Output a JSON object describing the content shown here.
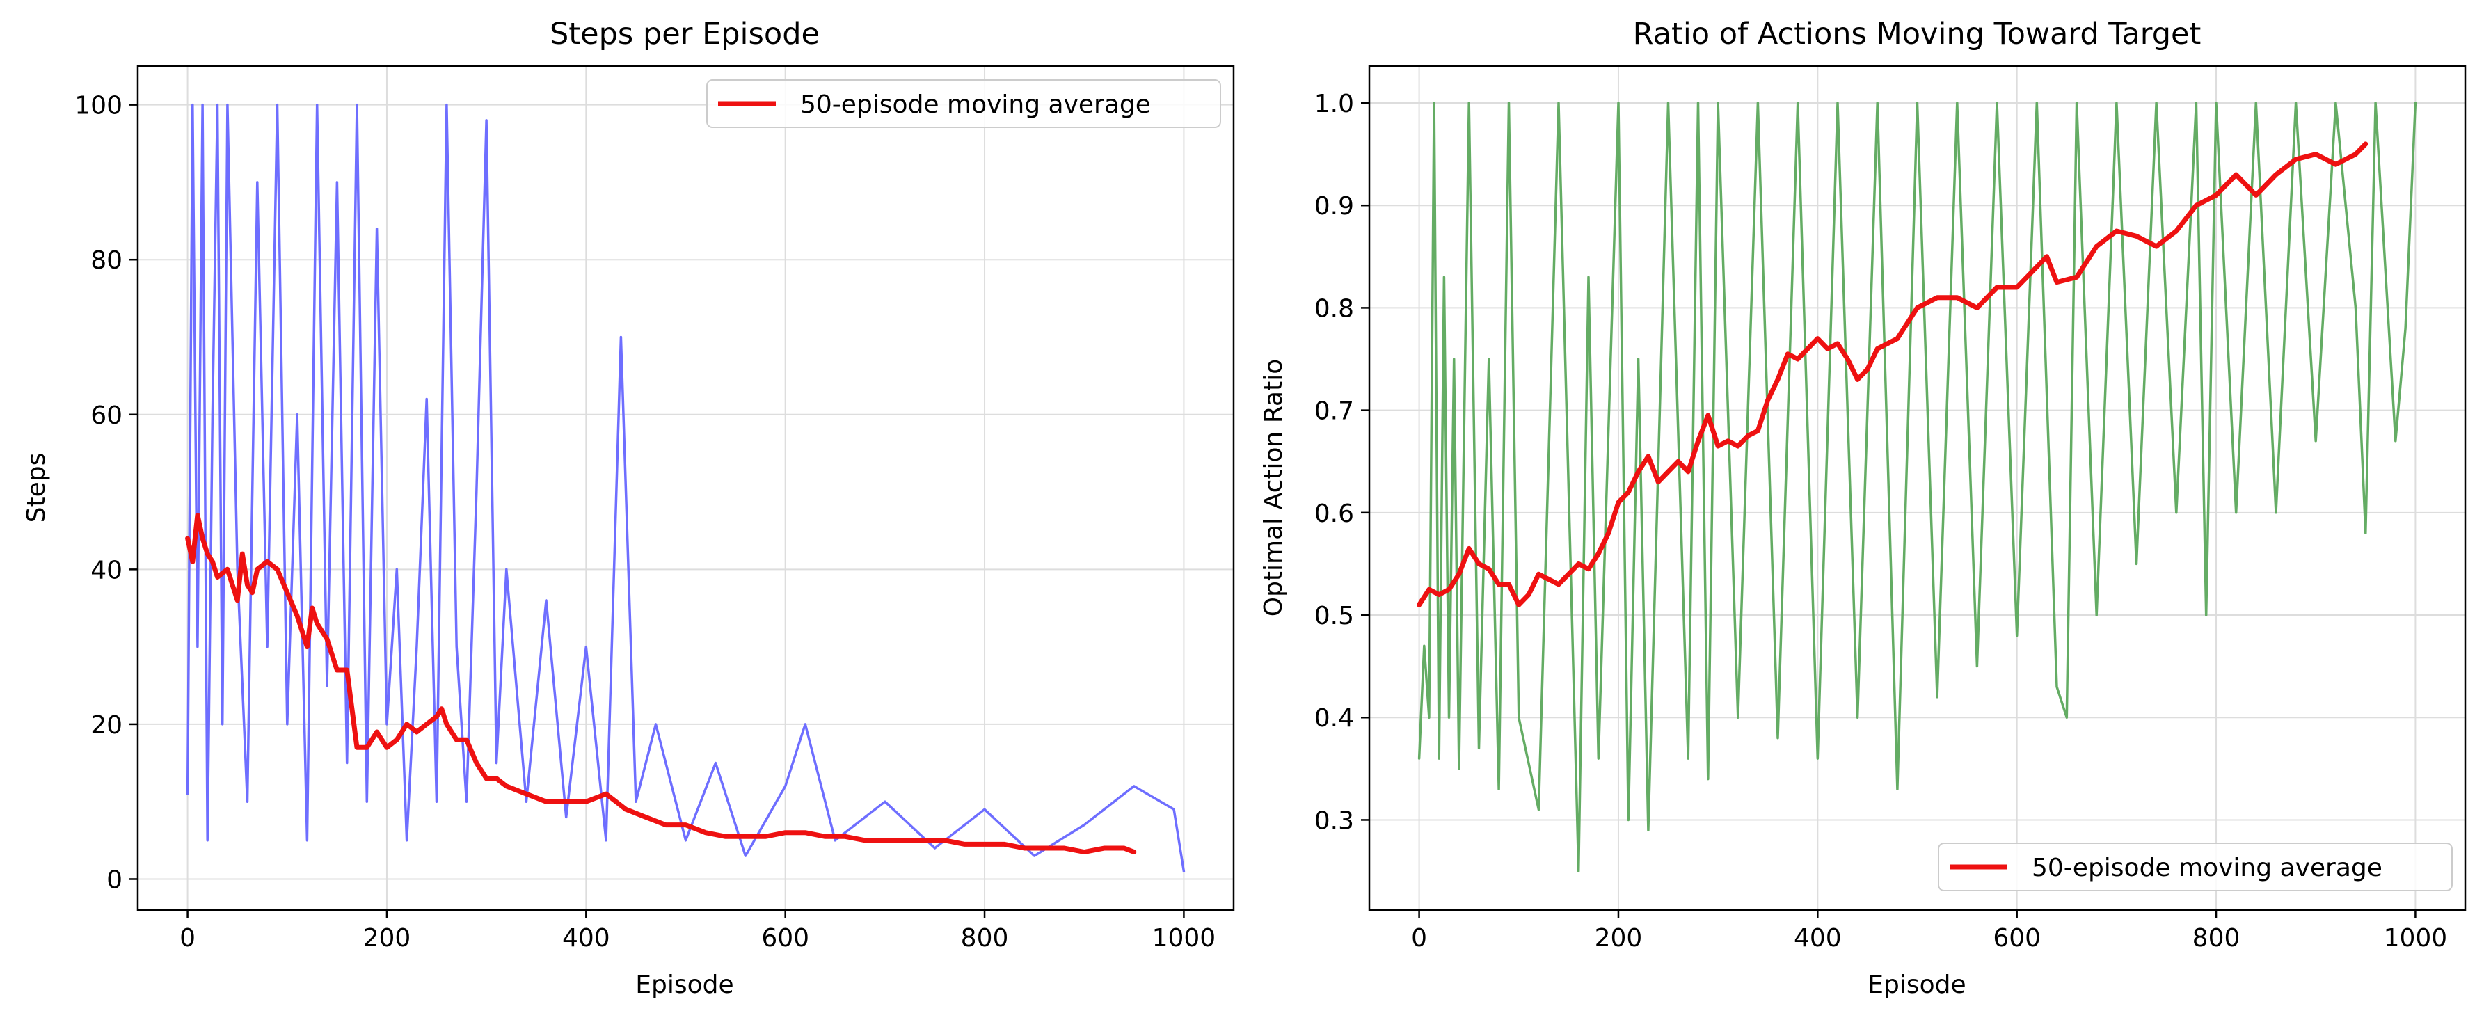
{
  "colors": {
    "steps_raw": "#6666ff",
    "ratio_raw": "#5ca85c",
    "moving_average": "#ee1111",
    "grid": "#dddddd",
    "axes": "#000000",
    "legend_border": "#cccccc"
  },
  "chart_data": [
    {
      "type": "line",
      "title": "Steps per Episode",
      "xlabel": "Episode",
      "ylabel": "Steps",
      "xlim": [
        -50,
        1050
      ],
      "ylim": [
        -4,
        105
      ],
      "xticks": [
        0,
        200,
        400,
        600,
        800,
        1000
      ],
      "yticks": [
        0,
        20,
        40,
        60,
        80,
        100
      ],
      "xtick_labels": [
        "0",
        "200",
        "400",
        "600",
        "800",
        "1000"
      ],
      "ytick_labels": [
        "0",
        "20",
        "40",
        "60",
        "80",
        "100"
      ],
      "grid": true,
      "legend_position": "upper right",
      "series": [
        {
          "name": "",
          "color": "#6666ff",
          "note_on_sampling": "per-episode raw values are only visible as a dense band; key points read from figure",
          "x": [
            0,
            5,
            10,
            15,
            20,
            25,
            30,
            35,
            40,
            50,
            60,
            70,
            80,
            90,
            100,
            110,
            120,
            130,
            140,
            150,
            160,
            170,
            180,
            190,
            200,
            210,
            220,
            230,
            240,
            250,
            260,
            270,
            280,
            290,
            300,
            310,
            320,
            340,
            360,
            380,
            400,
            420,
            435,
            450,
            470,
            500,
            530,
            560,
            600,
            620,
            650,
            700,
            750,
            800,
            850,
            900,
            950,
            990,
            1000
          ],
          "values": [
            11,
            100,
            30,
            100,
            5,
            60,
            100,
            20,
            100,
            40,
            10,
            90,
            30,
            100,
            20,
            60,
            5,
            100,
            25,
            90,
            15,
            100,
            10,
            84,
            20,
            40,
            5,
            30,
            62,
            10,
            100,
            30,
            10,
            50,
            98,
            15,
            40,
            10,
            36,
            8,
            30,
            5,
            70,
            10,
            20,
            5,
            15,
            3,
            12,
            20,
            5,
            10,
            4,
            9,
            3,
            7,
            12,
            9,
            1
          ]
        },
        {
          "name": "50-episode moving average",
          "color": "#ee1111",
          "x": [
            0,
            5,
            10,
            15,
            20,
            25,
            30,
            40,
            50,
            55,
            60,
            65,
            70,
            80,
            90,
            100,
            110,
            120,
            125,
            130,
            140,
            150,
            160,
            170,
            175,
            180,
            190,
            200,
            210,
            220,
            230,
            240,
            250,
            255,
            260,
            270,
            280,
            290,
            300,
            310,
            320,
            340,
            360,
            380,
            400,
            420,
            440,
            460,
            480,
            500,
            520,
            540,
            560,
            580,
            600,
            620,
            640,
            660,
            680,
            700,
            720,
            740,
            760,
            780,
            800,
            820,
            840,
            860,
            880,
            900,
            920,
            940,
            950
          ],
          "values": [
            44,
            41,
            47,
            44,
            42,
            41,
            39,
            40,
            36,
            42,
            38,
            37,
            40,
            41,
            40,
            37,
            34,
            30,
            35,
            33,
            31,
            27,
            27,
            17,
            17,
            17,
            19,
            17,
            18,
            20,
            19,
            20,
            21,
            22,
            20,
            18,
            18,
            15,
            13,
            13,
            12,
            11,
            10,
            10,
            10,
            11,
            9,
            8,
            7,
            7,
            6,
            5.5,
            5.5,
            5.5,
            6,
            6,
            5.5,
            5.5,
            5,
            5,
            5,
            5,
            5,
            4.5,
            4.5,
            4.5,
            4,
            4,
            4,
            3.5,
            4,
            4,
            3.5
          ]
        }
      ]
    },
    {
      "type": "line",
      "title": "Ratio of Actions Moving Toward Target",
      "xlabel": "Episode",
      "ylabel": "Optimal Action Ratio",
      "xlim": [
        -50,
        1050
      ],
      "ylim": [
        0.212,
        1.036
      ],
      "xticks": [
        0,
        200,
        400,
        600,
        800,
        1000
      ],
      "yticks": [
        0.3,
        0.4,
        0.5,
        0.6,
        0.7,
        0.8,
        0.9,
        1.0
      ],
      "xtick_labels": [
        "0",
        "200",
        "400",
        "600",
        "800",
        "1000"
      ],
      "ytick_labels": [
        "0.3",
        "0.4",
        "0.5",
        "0.6",
        "0.7",
        "0.8",
        "0.9",
        "1.0"
      ],
      "grid": true,
      "legend_position": "lower right",
      "series": [
        {
          "name": "",
          "color": "#5ca85c",
          "note_on_sampling": "per-episode raw values are only visible as a dense band; key points read from figure",
          "x": [
            0,
            5,
            10,
            15,
            20,
            25,
            30,
            35,
            40,
            50,
            60,
            70,
            80,
            90,
            100,
            120,
            140,
            160,
            170,
            180,
            200,
            210,
            220,
            230,
            250,
            270,
            280,
            290,
            300,
            320,
            340,
            360,
            380,
            400,
            420,
            440,
            460,
            480,
            500,
            520,
            540,
            560,
            580,
            600,
            620,
            640,
            650,
            660,
            680,
            700,
            720,
            740,
            760,
            780,
            790,
            800,
            820,
            840,
            860,
            880,
            900,
            920,
            940,
            950,
            960,
            980,
            990,
            1000
          ],
          "values": [
            0.36,
            0.47,
            0.4,
            1.0,
            0.36,
            0.83,
            0.4,
            0.75,
            0.35,
            1.0,
            0.37,
            0.75,
            0.33,
            1.0,
            0.4,
            0.31,
            1.0,
            0.25,
            0.83,
            0.36,
            1.0,
            0.3,
            0.75,
            0.29,
            1.0,
            0.36,
            1.0,
            0.34,
            1.0,
            0.4,
            1.0,
            0.38,
            1.0,
            0.36,
            1.0,
            0.4,
            1.0,
            0.33,
            1.0,
            0.42,
            1.0,
            0.45,
            1.0,
            0.48,
            1.0,
            0.43,
            0.4,
            1.0,
            0.5,
            1.0,
            0.55,
            1.0,
            0.6,
            1.0,
            0.5,
            1.0,
            0.6,
            1.0,
            0.6,
            1.0,
            0.67,
            1.0,
            0.8,
            0.58,
            1.0,
            0.67,
            0.78,
            1.0
          ]
        },
        {
          "name": "50-episode moving average",
          "color": "#ee1111",
          "x": [
            0,
            10,
            20,
            30,
            40,
            50,
            60,
            70,
            80,
            90,
            100,
            110,
            120,
            140,
            160,
            170,
            180,
            190,
            200,
            210,
            220,
            230,
            240,
            250,
            260,
            270,
            280,
            290,
            300,
            310,
            320,
            330,
            340,
            350,
            360,
            370,
            380,
            390,
            400,
            410,
            420,
            430,
            440,
            450,
            460,
            480,
            500,
            520,
            540,
            560,
            580,
            600,
            620,
            630,
            640,
            660,
            680,
            700,
            720,
            740,
            760,
            780,
            800,
            820,
            840,
            860,
            880,
            900,
            920,
            940,
            950
          ],
          "values": [
            0.51,
            0.525,
            0.52,
            0.525,
            0.54,
            0.565,
            0.55,
            0.545,
            0.53,
            0.53,
            0.51,
            0.52,
            0.54,
            0.53,
            0.55,
            0.545,
            0.56,
            0.58,
            0.61,
            0.62,
            0.64,
            0.655,
            0.63,
            0.64,
            0.65,
            0.64,
            0.67,
            0.695,
            0.665,
            0.67,
            0.665,
            0.675,
            0.68,
            0.71,
            0.73,
            0.755,
            0.75,
            0.76,
            0.77,
            0.76,
            0.765,
            0.75,
            0.73,
            0.74,
            0.76,
            0.77,
            0.8,
            0.81,
            0.81,
            0.8,
            0.82,
            0.82,
            0.84,
            0.85,
            0.825,
            0.83,
            0.86,
            0.875,
            0.87,
            0.86,
            0.875,
            0.9,
            0.91,
            0.93,
            0.91,
            0.93,
            0.945,
            0.95,
            0.94,
            0.95,
            0.96
          ]
        }
      ]
    }
  ]
}
